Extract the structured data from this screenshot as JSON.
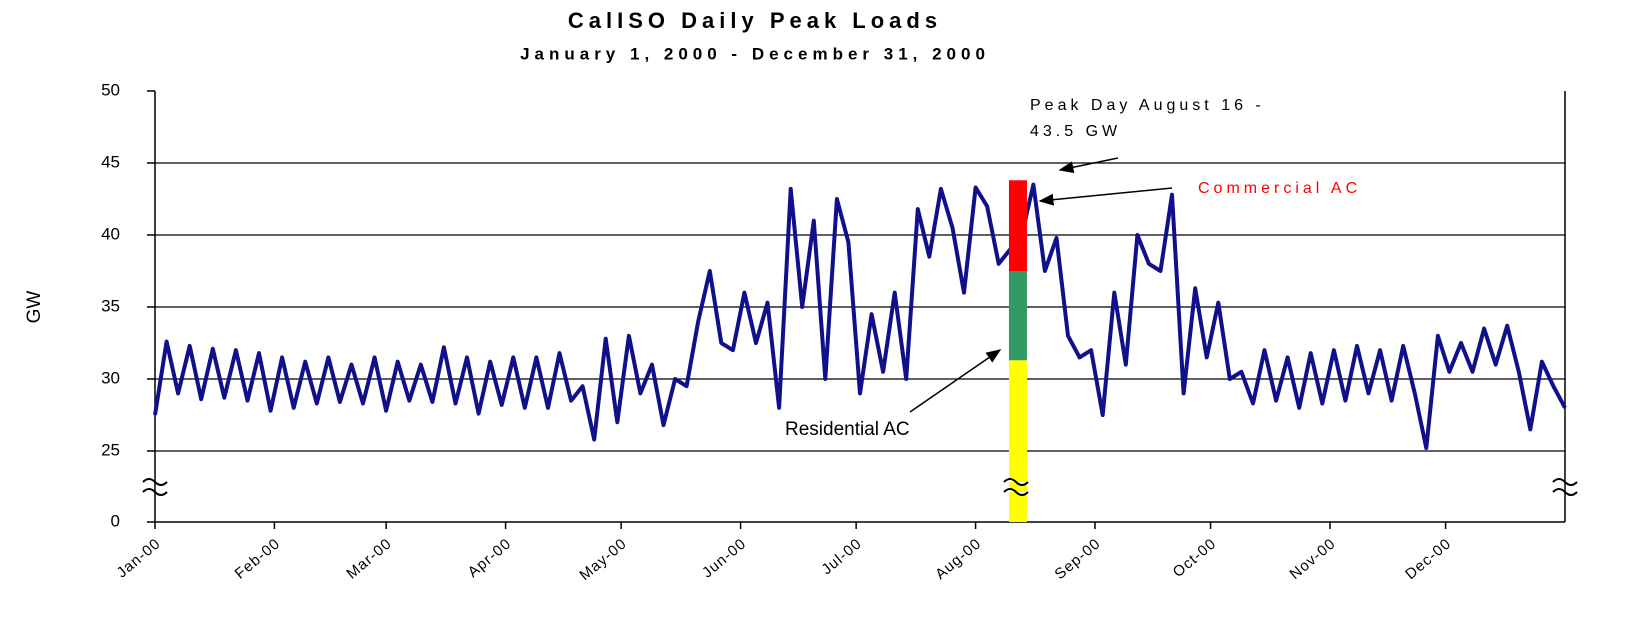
{
  "chart_data": {
    "type": "line",
    "title": "CalISO Daily Peak Loads",
    "subtitle": "January 1, 2000 - December 31, 2000",
    "y_label": "GW",
    "annotations": {
      "peak": [
        "Peak Day August 16 -",
        "43.5 GW"
      ]
    },
    "xlim": [
      0,
      366
    ],
    "xticks": [
      {
        "value": 0,
        "label": "Jan-00"
      },
      {
        "value": 31,
        "label": "Feb-00"
      },
      {
        "value": 60,
        "label": "Mar-00"
      },
      {
        "value": 91,
        "label": "Apr-00"
      },
      {
        "value": 121,
        "label": "May-00"
      },
      {
        "value": 152,
        "label": "Jun-00"
      },
      {
        "value": 182,
        "label": "Jul-00"
      },
      {
        "value": 213,
        "label": "Aug-00"
      },
      {
        "value": 244,
        "label": "Sep-00"
      },
      {
        "value": 274,
        "label": "Oct-00"
      },
      {
        "value": 305,
        "label": "Nov-00"
      },
      {
        "value": 335,
        "label": "Dec-00"
      }
    ],
    "ylim": [
      0,
      50
    ],
    "yticks": [
      0,
      25,
      30,
      35,
      40,
      45,
      50
    ],
    "y_break": [
      0,
      25
    ],
    "grid": true,
    "x": [
      0,
      3,
      6,
      9,
      12,
      15,
      18,
      21,
      24,
      27,
      30,
      33,
      36,
      39,
      42,
      45,
      48,
      51,
      54,
      57,
      60,
      63,
      66,
      69,
      72,
      75,
      78,
      81,
      84,
      87,
      90,
      93,
      96,
      99,
      102,
      105,
      108,
      111,
      114,
      117,
      120,
      123,
      126,
      129,
      132,
      135,
      138,
      141,
      144,
      147,
      150,
      153,
      156,
      159,
      162,
      165,
      168,
      171,
      174,
      177,
      180,
      183,
      186,
      189,
      192,
      195,
      198,
      201,
      204,
      207,
      210,
      213,
      216,
      219,
      222,
      225,
      228,
      231,
      234,
      237,
      240,
      243,
      246,
      249,
      252,
      255,
      258,
      261,
      264,
      267,
      270,
      273,
      276,
      279,
      282,
      285,
      288,
      291,
      294,
      297,
      300,
      303,
      306,
      309,
      312,
      315,
      318,
      321,
      324,
      327,
      330,
      333,
      336,
      339,
      342,
      345,
      348,
      351,
      354,
      357,
      360,
      363,
      366
    ],
    "series": [
      {
        "color": "#10108a",
        "values": [
          27.5,
          32.6,
          29.0,
          32.3,
          28.6,
          32.1,
          28.7,
          32.0,
          28.5,
          31.8,
          27.8,
          31.5,
          28.0,
          31.2,
          28.3,
          31.5,
          28.4,
          31.0,
          28.3,
          31.5,
          27.8,
          31.2,
          28.5,
          31.0,
          28.4,
          32.2,
          28.3,
          31.5,
          27.6,
          31.2,
          28.2,
          31.5,
          28.0,
          31.5,
          28.0,
          31.8,
          28.5,
          29.5,
          25.8,
          32.8,
          27.0,
          33.0,
          29.0,
          31.0,
          26.8,
          30.0,
          29.5,
          34.0,
          37.5,
          32.5,
          32.0,
          36.0,
          32.5,
          35.3,
          28.0,
          43.2,
          35.0,
          41.0,
          30.0,
          42.5,
          39.5,
          29.0,
          34.5,
          30.5,
          36.0,
          30.0,
          41.8,
          38.5,
          43.2,
          40.5,
          36.0,
          43.3,
          42.0,
          38.0,
          39.0,
          40.0,
          43.5,
          37.5,
          39.8,
          33.0,
          31.5,
          32.0,
          27.5,
          36.0,
          31.0,
          40.0,
          38.0,
          37.5,
          42.8,
          29.0,
          36.3,
          31.5,
          35.3,
          30.0,
          30.5,
          28.3,
          32.0,
          28.5,
          31.5,
          28.0,
          31.8,
          28.3,
          32.0,
          28.5,
          32.3,
          29.0,
          32.0,
          28.5,
          32.3,
          29.0,
          25.2,
          33.0,
          30.5,
          32.5,
          30.5,
          33.5,
          31.0,
          33.7,
          30.5,
          26.5,
          31.2,
          29.5,
          28.0
        ]
      }
    ],
    "stack": {
      "x": 224,
      "segments": [
        {
          "color": "#ffff00",
          "value": 31.3
        },
        {
          "name": "Residential AC",
          "color": "#339966",
          "value": 6.2
        },
        {
          "name": "Commercial AC",
          "color": "#ff0000",
          "value": 6.3
        }
      ]
    }
  }
}
